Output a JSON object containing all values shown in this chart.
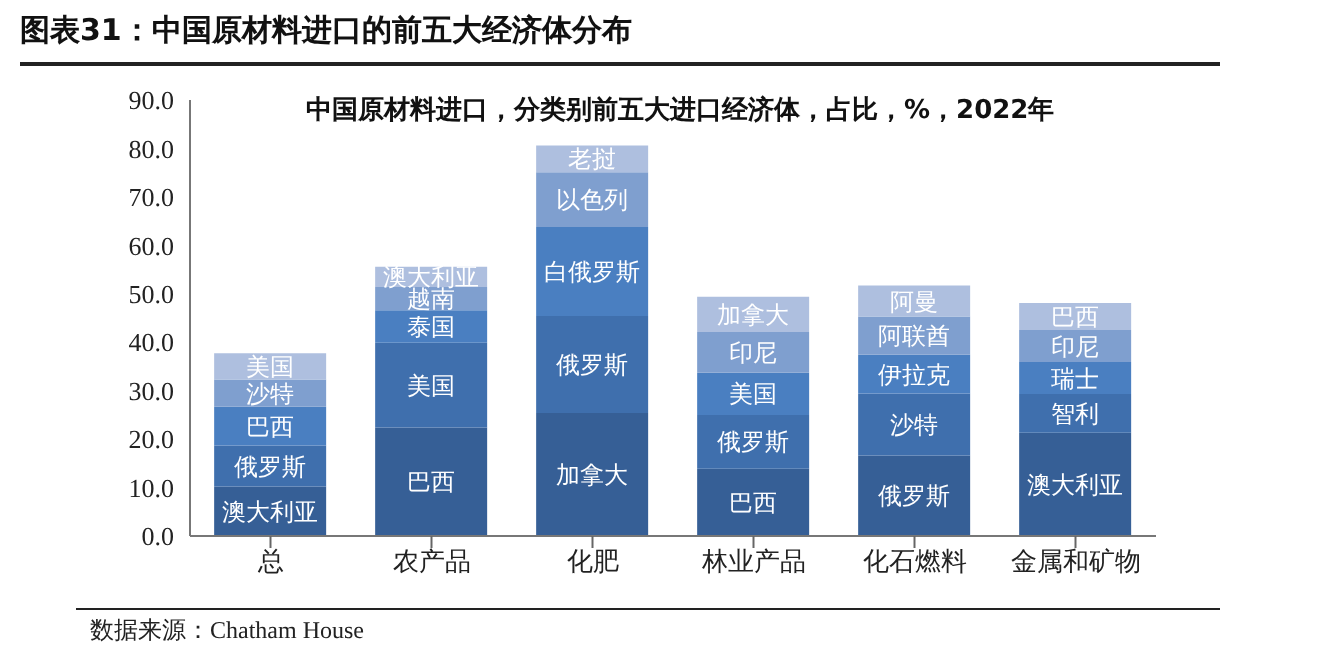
{
  "chart_data": {
    "type": "bar",
    "title": "图表31：中国原材料进口的前五大经济体分布",
    "subtitle": "中国原材料进口，分类别前五大进口经济体，占比，%，2022年",
    "annotations": [
      "数据来源：Chatham House"
    ],
    "categories": [
      "总",
      "农产品",
      "化肥",
      "林业产品",
      "化石燃料",
      "金属和矿物"
    ],
    "stacked": true,
    "grid": false,
    "legend": false,
    "ylim": [
      0,
      90
    ],
    "yticks": [
      {
        "value": 0,
        "label": "0.0"
      },
      {
        "value": 10,
        "label": "10.0"
      },
      {
        "value": 20,
        "label": "20.0"
      },
      {
        "value": 30,
        "label": "30.0"
      },
      {
        "value": 40,
        "label": "40.0"
      },
      {
        "value": 50,
        "label": "50.0"
      },
      {
        "value": 60,
        "label": "60.0"
      },
      {
        "value": 70,
        "label": "70.0"
      },
      {
        "value": 80,
        "label": "80.0"
      },
      {
        "value": 90,
        "label": "90.0"
      }
    ],
    "series": [
      {
        "color": "#365f96",
        "values": [
          10.2,
          22.4,
          25.4,
          13.9,
          16.6,
          21.3
        ],
        "value_labels": [
          "澳大利亚",
          "巴西",
          "加拿大",
          "巴西",
          "俄罗斯",
          "澳大利亚"
        ]
      },
      {
        "color": "#3f6fad",
        "values": [
          8.5,
          17.5,
          20.0,
          11.1,
          12.8,
          8.0
        ],
        "value_labels": [
          "俄罗斯",
          "美国",
          "俄罗斯",
          "俄罗斯",
          "沙特",
          "智利"
        ]
      },
      {
        "color": "#4a7fc1",
        "values": [
          8.0,
          6.7,
          18.4,
          8.7,
          8.0,
          6.6
        ],
        "value_labels": [
          "巴西",
          "泰国",
          "白俄罗斯",
          "美国",
          "伊拉克",
          "瑞士"
        ]
      },
      {
        "color": "#7f9fcf",
        "values": [
          5.6,
          4.8,
          11.3,
          8.4,
          7.9,
          6.6
        ],
        "value_labels": [
          "沙特",
          "越南",
          "以色列",
          "印尼",
          "阿联酋",
          "印尼"
        ]
      },
      {
        "color": "#aebfdf",
        "values": [
          5.4,
          4.2,
          5.5,
          7.3,
          6.4,
          5.6
        ],
        "value_labels": [
          "美国",
          "澳大利亚",
          "老挝",
          "加拿大",
          "阿曼",
          "巴西"
        ]
      }
    ]
  }
}
